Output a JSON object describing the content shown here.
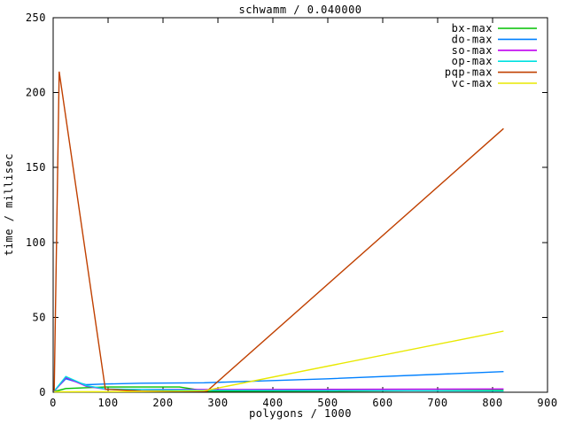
{
  "chart_data": {
    "type": "line",
    "title": "schwamm / 0.040000",
    "xlabel": "polygons / 1000",
    "ylabel": "time / millisec",
    "xlim": [
      0,
      900
    ],
    "ylim": [
      0,
      250
    ],
    "xticks": [
      0,
      100,
      200,
      300,
      400,
      500,
      600,
      700,
      800,
      900
    ],
    "yticks": [
      0,
      50,
      100,
      150,
      200,
      250
    ],
    "grid": false,
    "legend_position": "top-right-inside",
    "axis_color": "#000000",
    "background_color": "#ffffff",
    "series": [
      {
        "name": "bx-max",
        "color": "#00c000",
        "points": [
          [
            2,
            0.5
          ],
          [
            23,
            2.5
          ],
          [
            95,
            3.5
          ],
          [
            230,
            3.5
          ],
          [
            280,
            0.7
          ],
          [
            560,
            0.8
          ],
          [
            820,
            1.3
          ]
        ]
      },
      {
        "name": "do-max",
        "color": "#0080ff",
        "points": [
          [
            2,
            1
          ],
          [
            23,
            9
          ],
          [
            60,
            5
          ],
          [
            95,
            5.5
          ],
          [
            160,
            6
          ],
          [
            275,
            6.3
          ],
          [
            500,
            9
          ],
          [
            820,
            13.8
          ]
        ]
      },
      {
        "name": "so-max",
        "color": "#c000f0",
        "points": [
          [
            2,
            0.6
          ],
          [
            23,
            9.8
          ],
          [
            60,
            4
          ],
          [
            95,
            2
          ],
          [
            275,
            1.8
          ],
          [
            820,
            2.2
          ]
        ]
      },
      {
        "name": "op-max",
        "color": "#00e0e0",
        "points": [
          [
            2,
            0.8
          ],
          [
            23,
            10.5
          ],
          [
            60,
            4.5
          ],
          [
            95,
            2.2
          ],
          [
            275,
            1.3
          ],
          [
            820,
            0.9
          ]
        ]
      },
      {
        "name": "pqp-max",
        "color": "#c04000",
        "points": [
          [
            2,
            1
          ],
          [
            11,
            214
          ],
          [
            95,
            2
          ],
          [
            160,
            0.8
          ],
          [
            280,
            0.7
          ],
          [
            820,
            176
          ]
        ]
      },
      {
        "name": "vc-max",
        "color": "#e8e800",
        "points": [
          [
            2,
            0.3
          ],
          [
            160,
            0.4
          ],
          [
            275,
            1.0
          ],
          [
            820,
            40.8
          ]
        ]
      }
    ]
  }
}
